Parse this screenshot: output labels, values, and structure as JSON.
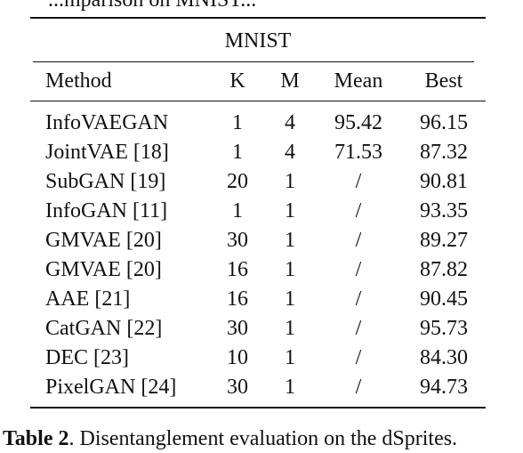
{
  "top_fragment": "...mparison on MNIST...",
  "table": {
    "group_header": "MNIST",
    "columns": [
      "Method",
      "K",
      "M",
      "Mean",
      "Best"
    ],
    "rows": [
      {
        "method": "InfoVAEGAN",
        "k": "1",
        "m": "4",
        "mean": "95.42",
        "best": "96.15"
      },
      {
        "method": "JointVAE [18]",
        "k": "1",
        "m": "4",
        "mean": "71.53",
        "best": "87.32"
      },
      {
        "method": "SubGAN [19]",
        "k": "20",
        "m": "1",
        "mean": "/",
        "best": "90.81"
      },
      {
        "method": "InfoGAN [11]",
        "k": "1",
        "m": "1",
        "mean": "/",
        "best": "93.35"
      },
      {
        "method": "GMVAE [20]",
        "k": "30",
        "m": "1",
        "mean": "/",
        "best": "89.27"
      },
      {
        "method": "GMVAE [20]",
        "k": "16",
        "m": "1",
        "mean": "/",
        "best": "87.82"
      },
      {
        "method": "AAE [21]",
        "k": "16",
        "m": "1",
        "mean": "/",
        "best": "90.45"
      },
      {
        "method": "CatGAN [22]",
        "k": "30",
        "m": "1",
        "mean": "/",
        "best": "95.73"
      },
      {
        "method": "DEC [23]",
        "k": "10",
        "m": "1",
        "mean": "/",
        "best": "84.30"
      },
      {
        "method": "PixelGAN [24]",
        "k": "30",
        "m": "1",
        "mean": "/",
        "best": "94.73"
      }
    ]
  },
  "caption": {
    "label": "Table 2",
    "separator": ". ",
    "text": "Disentanglement evaluation on the dSprites."
  }
}
